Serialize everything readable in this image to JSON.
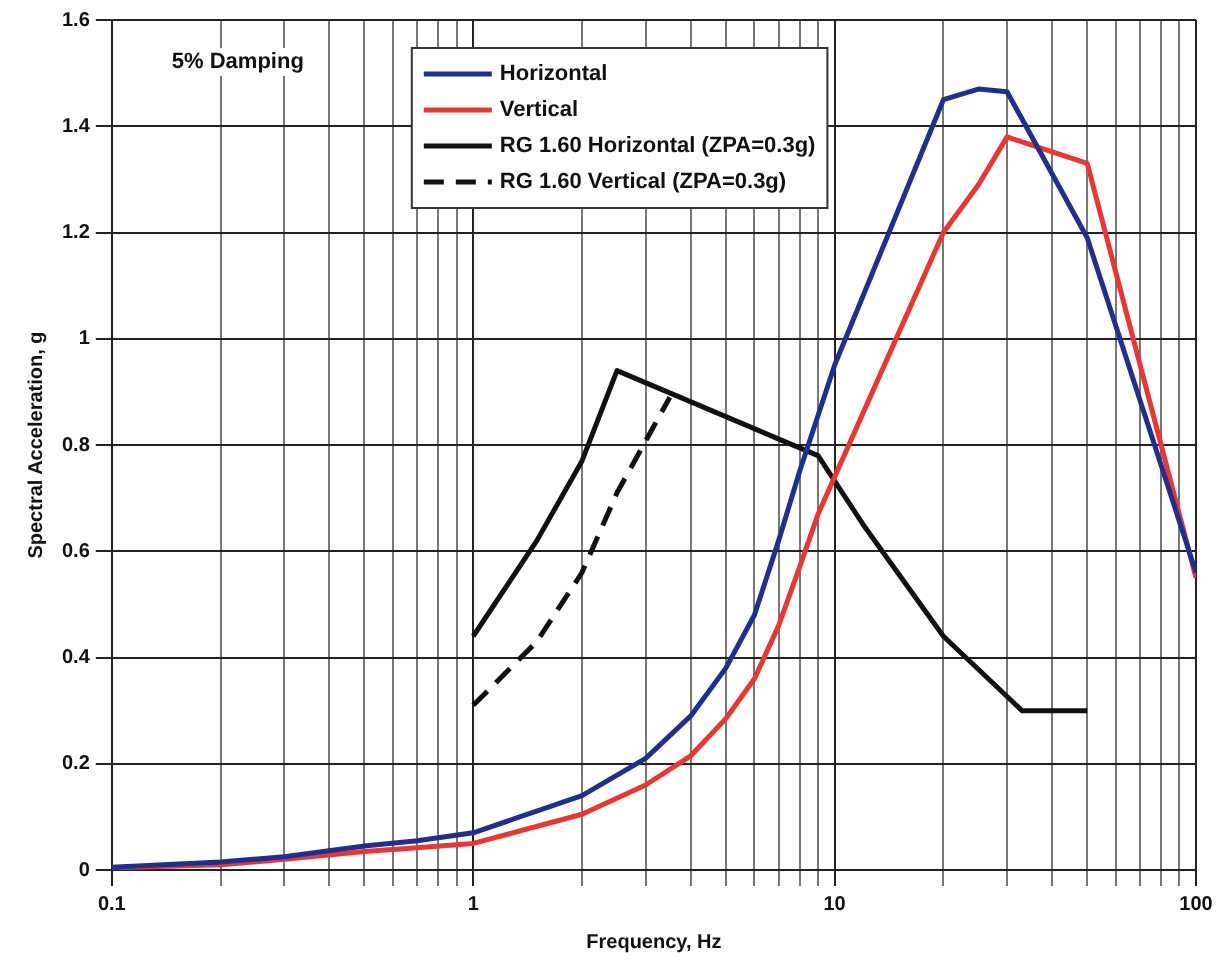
{
  "chart_data": {
    "type": "line",
    "xlabel": "Frequency, Hz",
    "ylabel": "Spectral Acceleration, g",
    "annotations": [
      "5% Damping"
    ],
    "log": "x",
    "grid": true,
    "legend": "top left",
    "marker": "none",
    "xlim": [
      0.1,
      100
    ],
    "ylim": [
      0,
      1.6
    ],
    "xticks": [
      0.1,
      {
        "value": 0.2,
        "label": null
      },
      {
        "value": 0.3,
        "label": null
      },
      {
        "value": 0.4,
        "label": null
      },
      {
        "value": 0.5,
        "label": null
      },
      {
        "value": 0.6,
        "label": null
      },
      {
        "value": 0.7,
        "label": null
      },
      {
        "value": 0.8,
        "label": null
      },
      {
        "value": 0.9,
        "label": null
      },
      1,
      {
        "value": 2,
        "label": null
      },
      {
        "value": 3,
        "label": null
      },
      {
        "value": 4,
        "label": null
      },
      {
        "value": 5,
        "label": null
      },
      {
        "value": 6,
        "label": null
      },
      {
        "value": 7,
        "label": null
      },
      {
        "value": 8,
        "label": null
      },
      {
        "value": 9,
        "label": null
      },
      10,
      {
        "value": 20,
        "label": null
      },
      {
        "value": 30,
        "label": null
      },
      {
        "value": 40,
        "label": null
      },
      {
        "value": 50,
        "label": null
      },
      {
        "value": 60,
        "label": null
      },
      {
        "value": 70,
        "label": null
      },
      {
        "value": 80,
        "label": null
      },
      {
        "value": 90,
        "label": null
      },
      100
    ],
    "yticks": [
      0,
      0.2,
      0.4,
      0.6,
      0.8,
      1,
      1.2,
      1.4,
      1.6
    ],
    "series": [
      {
        "name": "Horizontal",
        "color": "#1f2f8f",
        "line_style": "solid",
        "x": [
          0.1,
          0.2,
          0.3,
          0.5,
          0.7,
          1,
          2,
          3,
          4,
          5,
          6,
          7,
          8,
          10,
          20,
          25,
          30,
          50,
          100
        ],
        "values": [
          0.005,
          0.015,
          0.025,
          0.045,
          0.055,
          0.07,
          0.14,
          0.21,
          0.29,
          0.38,
          0.48,
          0.62,
          0.75,
          0.95,
          1.45,
          1.47,
          1.465,
          1.19,
          0.56
        ]
      },
      {
        "name": "Vertical",
        "color": "#ee3333",
        "line_style": "solid",
        "x": [
          0.1,
          0.2,
          0.3,
          0.5,
          0.7,
          1,
          2,
          3,
          4,
          5,
          6,
          7,
          8,
          9,
          10,
          20,
          25,
          30,
          50,
          100
        ],
        "values": [
          0.004,
          0.01,
          0.02,
          0.035,
          0.042,
          0.05,
          0.105,
          0.16,
          0.215,
          0.285,
          0.36,
          0.46,
          0.57,
          0.67,
          0.74,
          1.2,
          1.29,
          1.38,
          1.33,
          0.55
        ]
      },
      {
        "name": "RG 1.60 Horizontal (ZPA=0.3g)",
        "color": "#111111",
        "line_style": "solid",
        "x": [
          1,
          1.5,
          2,
          2.5,
          9,
          12,
          20,
          33,
          50
        ],
        "values": [
          0.44,
          0.62,
          0.77,
          0.94,
          0.78,
          0.65,
          0.44,
          0.3,
          0.3
        ]
      },
      {
        "name": "RG 1.60 Vertical (ZPA=0.3g)",
        "color": "#111111",
        "line_style": "dashed",
        "x": [
          1,
          1.5,
          2,
          2.5,
          3.5
        ],
        "values": [
          0.31,
          0.43,
          0.56,
          0.71,
          0.89
        ]
      }
    ]
  }
}
